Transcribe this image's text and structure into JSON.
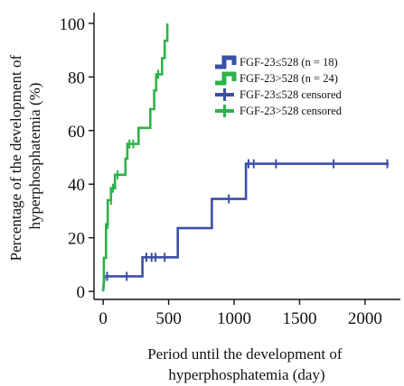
{
  "chart_data": {
    "type": "line",
    "step": true,
    "title": "",
    "ylabel_lines": [
      "Percentage of the development of",
      "hyperphosphatemia (%)"
    ],
    "xlabel_lines": [
      "Period until the development of",
      "hyperphosphatemia (day)"
    ],
    "xlim": [
      -70,
      2270
    ],
    "ylim": [
      -3,
      104
    ],
    "xticks": [
      0,
      500,
      1000,
      1500,
      2000
    ],
    "yticks": [
      0,
      20,
      40,
      60,
      80,
      100
    ],
    "grid": false,
    "legend_position": "top-right",
    "legend": [
      "FGF-23≤528 (n = 18)",
      "FGF-23>528 (n = 24)",
      "FGF-23≤528 censored",
      "FGF-23>528 censored"
    ],
    "series": [
      {
        "name": "FGF-23≤528 (n = 18)",
        "color": "#3b4fa8",
        "steps": [
          [
            0,
            0
          ],
          [
            10,
            5.6
          ],
          [
            300,
            5.6
          ],
          [
            300,
            12.7
          ],
          [
            570,
            12.7
          ],
          [
            570,
            23.6
          ],
          [
            830,
            23.6
          ],
          [
            830,
            34.5
          ],
          [
            1090,
            34.5
          ],
          [
            1090,
            47.6
          ],
          [
            2180,
            47.6
          ]
        ],
        "censored": [
          [
            30,
            5.6
          ],
          [
            180,
            5.6
          ],
          [
            330,
            12.7
          ],
          [
            370,
            12.7
          ],
          [
            400,
            12.7
          ],
          [
            470,
            12.7
          ],
          [
            960,
            34.5
          ],
          [
            1110,
            47.6
          ],
          [
            1150,
            47.6
          ],
          [
            1320,
            47.6
          ],
          [
            1760,
            47.6
          ],
          [
            2170,
            47.6
          ]
        ]
      },
      {
        "name": "FGF-23>528 (n = 24)",
        "color": "#2fb24a",
        "steps": [
          [
            0,
            0
          ],
          [
            5,
            4
          ],
          [
            5,
            12.5
          ],
          [
            22,
            12.5
          ],
          [
            22,
            25
          ],
          [
            35,
            25
          ],
          [
            35,
            34
          ],
          [
            60,
            34
          ],
          [
            60,
            38.5
          ],
          [
            90,
            38.5
          ],
          [
            90,
            43.5
          ],
          [
            170,
            43.5
          ],
          [
            170,
            49.5
          ],
          [
            185,
            49.5
          ],
          [
            185,
            55
          ],
          [
            270,
            55
          ],
          [
            270,
            61
          ],
          [
            360,
            61
          ],
          [
            360,
            68
          ],
          [
            390,
            68
          ],
          [
            390,
            75
          ],
          [
            405,
            75
          ],
          [
            405,
            81
          ],
          [
            450,
            81
          ],
          [
            450,
            87
          ],
          [
            470,
            87
          ],
          [
            470,
            93.5
          ],
          [
            490,
            93.5
          ],
          [
            490,
            100
          ]
        ],
        "censored": [
          [
            35,
            25
          ],
          [
            60,
            34
          ],
          [
            75,
            38.5
          ],
          [
            110,
            43.5
          ],
          [
            200,
            55
          ],
          [
            230,
            55
          ],
          [
            420,
            81
          ]
        ]
      }
    ]
  }
}
